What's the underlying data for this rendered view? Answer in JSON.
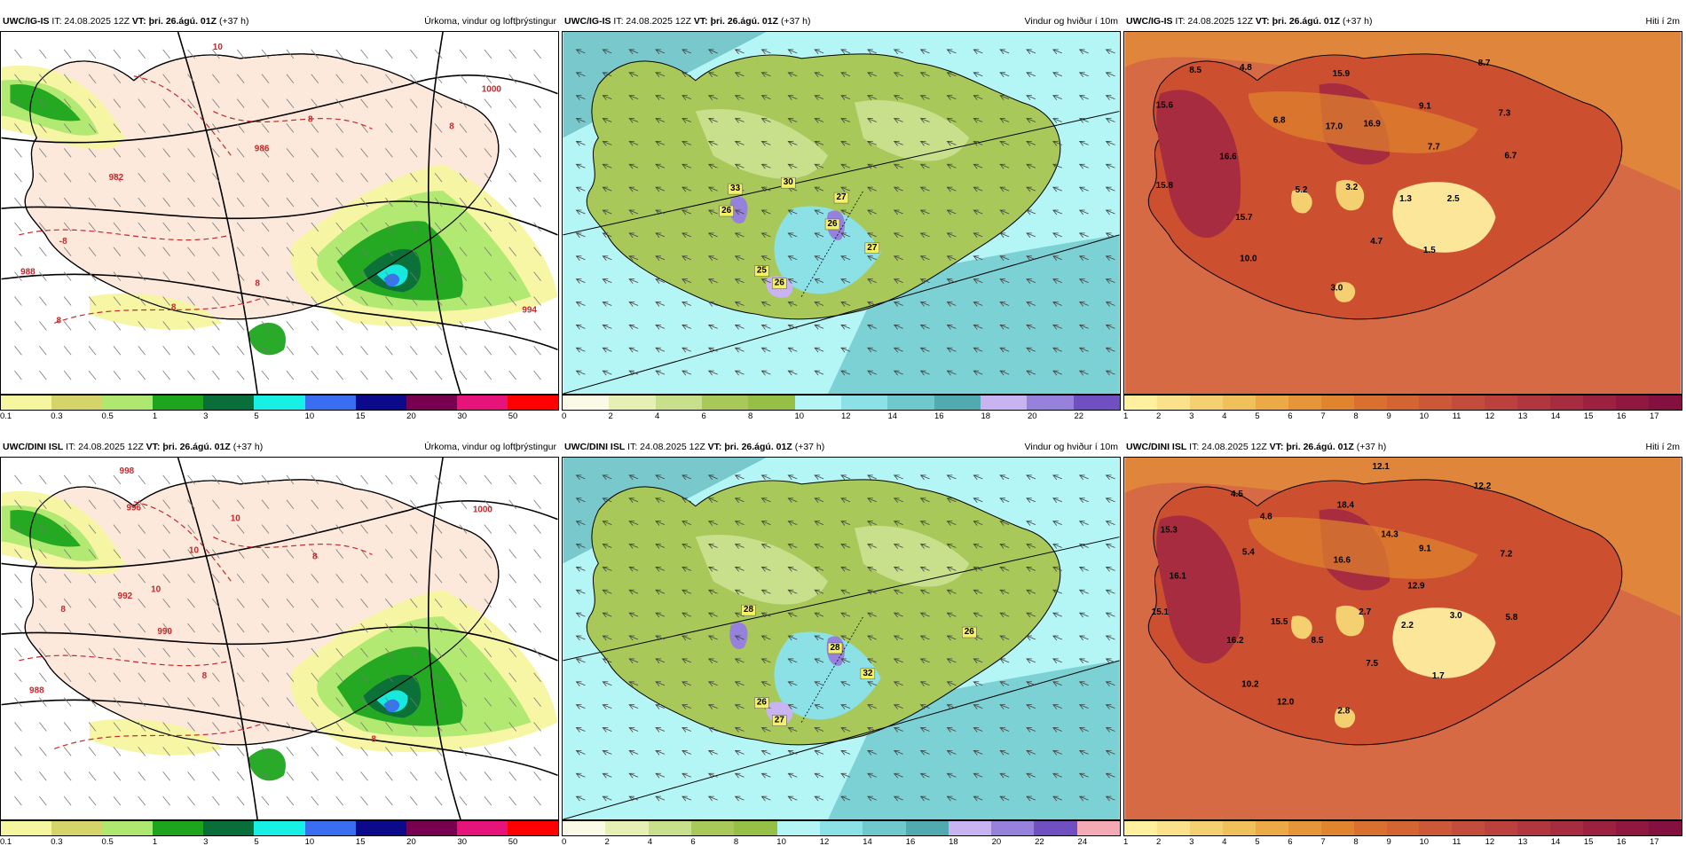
{
  "panels": [
    {
      "id": "p1",
      "model": "UWC/IG-IS",
      "it": "IT: 24.08.2025 12Z",
      "vt": "VT: þri. 26.ágú. 01Z",
      "lead": "(+37 h)",
      "title": "Úrkoma, vindur og loftþrýstingur",
      "type": "precip",
      "ticks": [
        "0.1",
        "0.3",
        "0.5",
        "1",
        "3",
        "5",
        "10",
        "15",
        "20",
        "30",
        "50"
      ],
      "colors": [
        "#f6f6a0",
        "#d4d46a",
        "#aee870",
        "#1ea51e",
        "#0a6e3a",
        "#18f0e6",
        "#3a6ef0",
        "#0a0a8a",
        "#780050",
        "#e6147a",
        "#ff0000"
      ],
      "labels": [
        {
          "t": "10",
          "x": 245,
          "y": 20
        },
        {
          "t": "986",
          "x": 295,
          "y": 135
        },
        {
          "t": "982",
          "x": 130,
          "y": 168
        },
        {
          "t": "1000",
          "x": 555,
          "y": 68
        },
        {
          "t": "988",
          "x": 30,
          "y": 275
        },
        {
          "t": "994",
          "x": 598,
          "y": 318
        },
        {
          "t": "8",
          "x": 350,
          "y": 102
        },
        {
          "t": "8",
          "x": 290,
          "y": 288
        },
        {
          "t": "8",
          "x": 195,
          "y": 315
        },
        {
          "t": "8",
          "x": 510,
          "y": 110
        },
        {
          "t": "-8",
          "x": 70,
          "y": 240
        },
        {
          "t": "8",
          "x": 65,
          "y": 330
        }
      ]
    },
    {
      "id": "p2",
      "model": "UWC/IG-IS",
      "it": "IT: 24.08.2025 12Z",
      "vt": "VT: þri. 26.ágú. 01Z",
      "lead": "(+37 h)",
      "title": "Vindur og hviður í 10m",
      "type": "wind",
      "ticks": [
        "0",
        "2",
        "4",
        "6",
        "8",
        "10",
        "12",
        "14",
        "16",
        "18",
        "20",
        "22"
      ],
      "colors": [
        "#fafae6",
        "#e6f0b4",
        "#c8e08c",
        "#a8c85a",
        "#96bf46",
        "#b4f5f5",
        "#8ce1e6",
        "#6ec8cc",
        "#50aab0",
        "#c8b4f0",
        "#9682dc",
        "#7050c0"
      ],
      "labels": [
        {
          "t": "33",
          "x": 195,
          "y": 180
        },
        {
          "t": "26",
          "x": 185,
          "y": 205
        },
        {
          "t": "30",
          "x": 255,
          "y": 173
        },
        {
          "t": "27",
          "x": 315,
          "y": 190
        },
        {
          "t": "26",
          "x": 305,
          "y": 220
        },
        {
          "t": "27",
          "x": 350,
          "y": 247
        },
        {
          "t": "25",
          "x": 225,
          "y": 273
        },
        {
          "t": "26",
          "x": 245,
          "y": 287
        }
      ]
    },
    {
      "id": "p3",
      "model": "UWC/IG-IS",
      "it": "IT: 24.08.2025 12Z",
      "vt": "VT: þri. 26.ágú. 01Z",
      "lead": "(+37 h)",
      "title": "Hiti í 2m",
      "type": "temp",
      "ticks": [
        "1",
        "2",
        "3",
        "4",
        "5",
        "6",
        "7",
        "8",
        "9",
        "10",
        "11",
        "12",
        "13",
        "14",
        "15",
        "16",
        "17"
      ],
      "colors": [
        "#fff0a0",
        "#fbe28a",
        "#f5d070",
        "#f0c05a",
        "#ecaa46",
        "#e69638",
        "#e0842e",
        "#da7030",
        "#d46432",
        "#cc5838",
        "#c44c3c",
        "#bc403e",
        "#b2363e",
        "#a82c40",
        "#9c2040",
        "#901840",
        "#841040"
      ],
      "labels": [
        {
          "t": "8.5",
          "x": 80,
          "y": 46
        },
        {
          "t": "4.8",
          "x": 137,
          "y": 43
        },
        {
          "t": "15.9",
          "x": 245,
          "y": 50
        },
        {
          "t": "8.7",
          "x": 407,
          "y": 38
        },
        {
          "t": "15.6",
          "x": 45,
          "y": 86
        },
        {
          "t": "9.1",
          "x": 340,
          "y": 87
        },
        {
          "t": "7.3",
          "x": 430,
          "y": 95
        },
        {
          "t": "6.8",
          "x": 175,
          "y": 103
        },
        {
          "t": "17.0",
          "x": 237,
          "y": 110
        },
        {
          "t": "16.9",
          "x": 280,
          "y": 107
        },
        {
          "t": "7.7",
          "x": 350,
          "y": 133
        },
        {
          "t": "6.7",
          "x": 437,
          "y": 143
        },
        {
          "t": "16.6",
          "x": 117,
          "y": 144
        },
        {
          "t": "15.8",
          "x": 45,
          "y": 177
        },
        {
          "t": "5.2",
          "x": 200,
          "y": 182
        },
        {
          "t": "3.2",
          "x": 257,
          "y": 179
        },
        {
          "t": "1.3",
          "x": 318,
          "y": 192
        },
        {
          "t": "2.5",
          "x": 372,
          "y": 192
        },
        {
          "t": "15.7",
          "x": 135,
          "y": 213
        },
        {
          "t": "4.7",
          "x": 285,
          "y": 240
        },
        {
          "t": "1.5",
          "x": 345,
          "y": 250
        },
        {
          "t": "10.0",
          "x": 140,
          "y": 260
        },
        {
          "t": "3.0",
          "x": 240,
          "y": 293
        }
      ]
    },
    {
      "id": "p4",
      "model": "UWC/DINI ISL",
      "it": "IT: 24.08.2025 12Z",
      "vt": "VT: þri. 26.ágú. 01Z",
      "lead": "(+37 h)",
      "title": "Úrkoma, vindur og loftþrýstingur",
      "type": "precip",
      "ticks": [
        "0.1",
        "0.3",
        "0.5",
        "1",
        "3",
        "5",
        "10",
        "15",
        "20",
        "30",
        "50"
      ],
      "colors": [
        "#f6f6a0",
        "#d4d46a",
        "#aee870",
        "#1ea51e",
        "#0a6e3a",
        "#18f0e6",
        "#3a6ef0",
        "#0a0a8a",
        "#780050",
        "#e6147a",
        "#ff0000"
      ],
      "labels": [
        {
          "t": "998",
          "x": 142,
          "y": 18
        },
        {
          "t": "1000",
          "x": 545,
          "y": 62
        },
        {
          "t": "996",
          "x": 150,
          "y": 60
        },
        {
          "t": "10",
          "x": 265,
          "y": 72
        },
        {
          "t": "10",
          "x": 218,
          "y": 108
        },
        {
          "t": "10",
          "x": 175,
          "y": 152
        },
        {
          "t": "992",
          "x": 140,
          "y": 160
        },
        {
          "t": "990",
          "x": 185,
          "y": 200
        },
        {
          "t": "988",
          "x": 40,
          "y": 267
        },
        {
          "t": "8",
          "x": 355,
          "y": 115
        },
        {
          "t": "8",
          "x": 230,
          "y": 250
        },
        {
          "t": "-8",
          "x": 420,
          "y": 322
        },
        {
          "t": "8",
          "x": 70,
          "y": 175
        }
      ]
    },
    {
      "id": "p5",
      "model": "UWC/DINI ISL",
      "it": "IT: 24.08.2025 12Z",
      "vt": "VT: þri. 26.ágú. 01Z",
      "lead": "(+37 h)",
      "title": "Vindur og hviður í 10m",
      "type": "wind",
      "ticks": [
        "0",
        "2",
        "4",
        "6",
        "8",
        "10",
        "12",
        "14",
        "16",
        "18",
        "20",
        "22",
        "24"
      ],
      "colors": [
        "#fafae6",
        "#e6f0b4",
        "#c8e08c",
        "#a8c85a",
        "#96bf46",
        "#b4f5f5",
        "#8ce1e6",
        "#6ec8cc",
        "#50aab0",
        "#c8b4f0",
        "#9682dc",
        "#7050c0",
        "#f4aab4"
      ],
      "labels": [
        {
          "t": "28",
          "x": 210,
          "y": 175
        },
        {
          "t": "26",
          "x": 460,
          "y": 200
        },
        {
          "t": "28",
          "x": 308,
          "y": 218
        },
        {
          "t": "32",
          "x": 345,
          "y": 247
        },
        {
          "t": "26",
          "x": 225,
          "y": 280
        },
        {
          "t": "27",
          "x": 245,
          "y": 300
        }
      ]
    },
    {
      "id": "p6",
      "model": "UWC/DINI ISL",
      "it": "IT: 24.08.2025 12Z",
      "vt": "VT: þri. 26.ágú. 01Z",
      "lead": "(+37 h)",
      "title": "Hiti í 2m",
      "type": "temp",
      "ticks": [
        "1",
        "2",
        "3",
        "4",
        "5",
        "6",
        "7",
        "8",
        "9",
        "10",
        "11",
        "12",
        "13",
        "14",
        "15",
        "16",
        "17"
      ],
      "colors": [
        "#fff0a0",
        "#fbe28a",
        "#f5d070",
        "#f0c05a",
        "#ecaa46",
        "#e69638",
        "#e0842e",
        "#da7030",
        "#d46432",
        "#cc5838",
        "#c44c3c",
        "#bc403e",
        "#b2363e",
        "#a82c40",
        "#9c2040",
        "#901840",
        "#841040"
      ],
      "labels": [
        {
          "t": "12.1",
          "x": 290,
          "y": 13
        },
        {
          "t": "4.5",
          "x": 127,
          "y": 44
        },
        {
          "t": "4.8",
          "x": 160,
          "y": 70
        },
        {
          "t": "12.2",
          "x": 405,
          "y": 35
        },
        {
          "t": "18.4",
          "x": 250,
          "y": 57
        },
        {
          "t": "14.3",
          "x": 300,
          "y": 90
        },
        {
          "t": "15.3",
          "x": 50,
          "y": 85
        },
        {
          "t": "5.4",
          "x": 140,
          "y": 110
        },
        {
          "t": "16.6",
          "x": 246,
          "y": 119
        },
        {
          "t": "9.1",
          "x": 340,
          "y": 106
        },
        {
          "t": "7.2",
          "x": 432,
          "y": 112
        },
        {
          "t": "16.1",
          "x": 60,
          "y": 137
        },
        {
          "t": "12.9",
          "x": 330,
          "y": 148
        },
        {
          "t": "15.1",
          "x": 40,
          "y": 178
        },
        {
          "t": "2.7",
          "x": 272,
          "y": 178
        },
        {
          "t": "3.0",
          "x": 375,
          "y": 182
        },
        {
          "t": "5.8",
          "x": 438,
          "y": 184
        },
        {
          "t": "15.5",
          "x": 175,
          "y": 189
        },
        {
          "t": "2.2",
          "x": 320,
          "y": 193
        },
        {
          "t": "16.2",
          "x": 125,
          "y": 210
        },
        {
          "t": "8.5",
          "x": 218,
          "y": 210
        },
        {
          "t": "7.5",
          "x": 280,
          "y": 236
        },
        {
          "t": "1.7",
          "x": 355,
          "y": 250
        },
        {
          "t": "10.2",
          "x": 142,
          "y": 260
        },
        {
          "t": "12.0",
          "x": 182,
          "y": 280
        },
        {
          "t": "2.8",
          "x": 248,
          "y": 290
        }
      ]
    }
  ]
}
